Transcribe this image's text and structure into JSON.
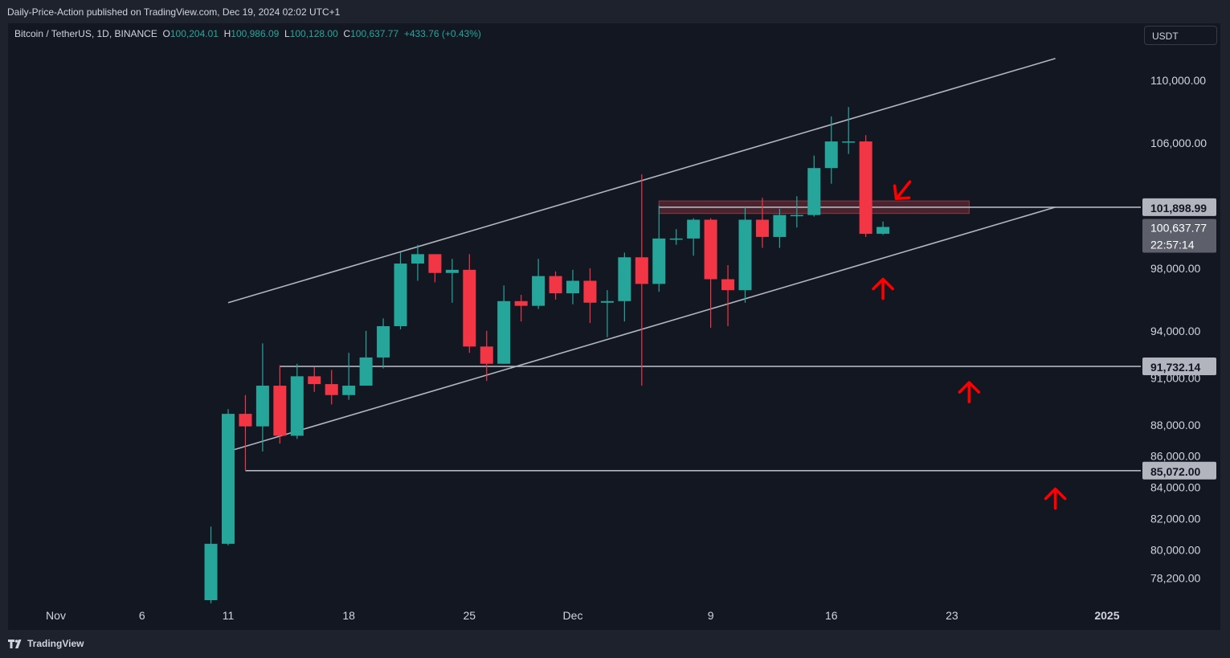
{
  "header": {
    "published": "Daily-Price-Action published on TradingView.com, Dec 19, 2024 02:02 UTC+1"
  },
  "legend": {
    "symbol": "Bitcoin / TetherUS, 1D, BINANCE",
    "o_label": "O",
    "o": "100,204.01",
    "h_label": "H",
    "h": "100,986.09",
    "l_label": "L",
    "l": "100,128.00",
    "c_label": "C",
    "c": "100,637.77",
    "change": "+433.76 (+0.43%)"
  },
  "currency": "USDT",
  "brand": "TradingView",
  "colors": {
    "up": "#26a69a",
    "down": "#f23645",
    "background": "#131722",
    "lines": "#b2b5be",
    "zone": "#5c2a33",
    "arrows": "#ff0000"
  },
  "chart_data": {
    "type": "candlestick",
    "interval": "1D",
    "price_scale": {
      "ticks": [
        {
          "value": 110000,
          "label": "110,000.00"
        },
        {
          "value": 106000,
          "label": "106,000.00"
        },
        {
          "value": 98000,
          "label": "98,000.00"
        },
        {
          "value": 94000,
          "label": "94,000.00"
        },
        {
          "value": 91000,
          "label": "91,000.00"
        },
        {
          "value": 88000,
          "label": "88,000.00"
        },
        {
          "value": 86000,
          "label": "86,000.00"
        },
        {
          "value": 84000,
          "label": "84,000.00"
        },
        {
          "value": 82000,
          "label": "82,000.00"
        },
        {
          "value": 80000,
          "label": "80,000.00"
        },
        {
          "value": 78200,
          "label": "78,200.00"
        }
      ],
      "badges": [
        {
          "value": 101898.99,
          "label": "101,898.99"
        },
        {
          "value": 91732.14,
          "label": "91,732.14"
        },
        {
          "value": 85072.0,
          "label": "85,072.00"
        }
      ],
      "last_price": {
        "value": 100637.77,
        "label": "100,637.77",
        "countdown": "22:57:14"
      }
    },
    "time_scale": {
      "ticks": [
        {
          "date": "2024-11-01",
          "label": "Nov"
        },
        {
          "date": "2024-11-06",
          "label": "6"
        },
        {
          "date": "2024-11-11",
          "label": "11"
        },
        {
          "date": "2024-11-18",
          "label": "18"
        },
        {
          "date": "2024-11-25",
          "label": "25"
        },
        {
          "date": "2024-12-01",
          "label": "Dec"
        },
        {
          "date": "2024-12-09",
          "label": "9"
        },
        {
          "date": "2024-12-16",
          "label": "16"
        },
        {
          "date": "2024-12-23",
          "label": "23"
        },
        {
          "date": "2025-01-01",
          "label": "2025"
        }
      ]
    },
    "candles": [
      {
        "date": "2024-11-10",
        "o": 76800,
        "h": 81500,
        "l": 76600,
        "c": 80400
      },
      {
        "date": "2024-11-11",
        "o": 80400,
        "h": 89000,
        "l": 80300,
        "c": 88700
      },
      {
        "date": "2024-11-12",
        "o": 88700,
        "h": 89900,
        "l": 85100,
        "c": 87900
      },
      {
        "date": "2024-11-13",
        "o": 87900,
        "h": 93200,
        "l": 86300,
        "c": 90500
      },
      {
        "date": "2024-11-14",
        "o": 90500,
        "h": 91800,
        "l": 86800,
        "c": 87300
      },
      {
        "date": "2024-11-15",
        "o": 87300,
        "h": 91900,
        "l": 87100,
        "c": 91100
      },
      {
        "date": "2024-11-16",
        "o": 91100,
        "h": 91700,
        "l": 90100,
        "c": 90600
      },
      {
        "date": "2024-11-17",
        "o": 90600,
        "h": 91500,
        "l": 89300,
        "c": 89900
      },
      {
        "date": "2024-11-18",
        "o": 89900,
        "h": 92600,
        "l": 89600,
        "c": 90500
      },
      {
        "date": "2024-11-19",
        "o": 90500,
        "h": 94000,
        "l": 90500,
        "c": 92300
      },
      {
        "date": "2024-11-20",
        "o": 92300,
        "h": 94800,
        "l": 91600,
        "c": 94300
      },
      {
        "date": "2024-11-21",
        "o": 94300,
        "h": 99000,
        "l": 94100,
        "c": 98300
      },
      {
        "date": "2024-11-22",
        "o": 98300,
        "h": 99500,
        "l": 97200,
        "c": 98900
      },
      {
        "date": "2024-11-23",
        "o": 98900,
        "h": 98600,
        "l": 97100,
        "c": 97700
      },
      {
        "date": "2024-11-24",
        "o": 97700,
        "h": 98600,
        "l": 95800,
        "c": 97900
      },
      {
        "date": "2024-11-25",
        "o": 97900,
        "h": 98900,
        "l": 92600,
        "c": 93000
      },
      {
        "date": "2024-11-26",
        "o": 93000,
        "h": 94000,
        "l": 90800,
        "c": 91900
      },
      {
        "date": "2024-11-27",
        "o": 91900,
        "h": 96900,
        "l": 91900,
        "c": 95900
      },
      {
        "date": "2024-11-28",
        "o": 95900,
        "h": 96300,
        "l": 94600,
        "c": 95600
      },
      {
        "date": "2024-11-29",
        "o": 95600,
        "h": 98600,
        "l": 95400,
        "c": 97500
      },
      {
        "date": "2024-11-30",
        "o": 97500,
        "h": 97800,
        "l": 96000,
        "c": 96400
      },
      {
        "date": "2024-12-01",
        "o": 96400,
        "h": 97900,
        "l": 95700,
        "c": 97200
      },
      {
        "date": "2024-12-02",
        "o": 97200,
        "h": 98000,
        "l": 94500,
        "c": 95800
      },
      {
        "date": "2024-12-03",
        "o": 95800,
        "h": 96600,
        "l": 93600,
        "c": 95900
      },
      {
        "date": "2024-12-04",
        "o": 95900,
        "h": 99000,
        "l": 94600,
        "c": 98700
      },
      {
        "date": "2024-12-05",
        "o": 98700,
        "h": 104000,
        "l": 90500,
        "c": 97000
      },
      {
        "date": "2024-12-06",
        "o": 97000,
        "h": 102000,
        "l": 96500,
        "c": 99900
      },
      {
        "date": "2024-12-07",
        "o": 99900,
        "h": 100500,
        "l": 99500,
        "c": 99900
      },
      {
        "date": "2024-12-08",
        "o": 99900,
        "h": 101200,
        "l": 98800,
        "c": 101100
      },
      {
        "date": "2024-12-09",
        "o": 101100,
        "h": 101200,
        "l": 94200,
        "c": 97300
      },
      {
        "date": "2024-12-10",
        "o": 97300,
        "h": 98200,
        "l": 94300,
        "c": 96600
      },
      {
        "date": "2024-12-11",
        "o": 96600,
        "h": 101900,
        "l": 95800,
        "c": 101100
      },
      {
        "date": "2024-12-12",
        "o": 101100,
        "h": 102500,
        "l": 99300,
        "c": 100000
      },
      {
        "date": "2024-12-13",
        "o": 100000,
        "h": 101800,
        "l": 99300,
        "c": 101400
      },
      {
        "date": "2024-12-14",
        "o": 101400,
        "h": 102600,
        "l": 100600,
        "c": 101400
      },
      {
        "date": "2024-12-15",
        "o": 101400,
        "h": 105200,
        "l": 101300,
        "c": 104400
      },
      {
        "date": "2024-12-16",
        "o": 104400,
        "h": 107700,
        "l": 103400,
        "c": 106100
      },
      {
        "date": "2024-12-17",
        "o": 106100,
        "h": 108300,
        "l": 105300,
        "c": 106100
      },
      {
        "date": "2024-12-18",
        "o": 106100,
        "h": 106500,
        "l": 100000,
        "c": 100200
      },
      {
        "date": "2024-12-19",
        "o": 100204.01,
        "h": 100986.09,
        "l": 100128.0,
        "c": 100637.77
      }
    ],
    "drawings": {
      "channel_upper": {
        "from": {
          "date": "2024-11-11",
          "value": 95800
        },
        "to": {
          "date": "2024-12-29",
          "value": 111400
        }
      },
      "channel_lower": {
        "from": {
          "date": "2024-11-11",
          "value": 86300
        },
        "to": {
          "date": "2024-12-29",
          "value": 101900
        }
      },
      "horizontal_lines": [
        {
          "value": 101898.99,
          "from_date": "2024-12-06"
        },
        {
          "value": 91732.14,
          "from_date": "2024-11-14"
        },
        {
          "value": 85072.0,
          "from_date": "2024-11-12"
        }
      ],
      "resistance_zone": {
        "from_date": "2024-12-06",
        "to_date": "2024-12-24",
        "top": 102300,
        "bottom": 101500
      },
      "arrows": [
        {
          "direction": "down-left",
          "date": "2024-12-20",
          "value": 102600
        },
        {
          "direction": "up",
          "date": "2024-12-19",
          "value": 97300
        },
        {
          "direction": "up",
          "date": "2024-12-24",
          "value": 90700
        },
        {
          "direction": "up",
          "date": "2024-12-29",
          "value": 83900
        }
      ]
    }
  }
}
